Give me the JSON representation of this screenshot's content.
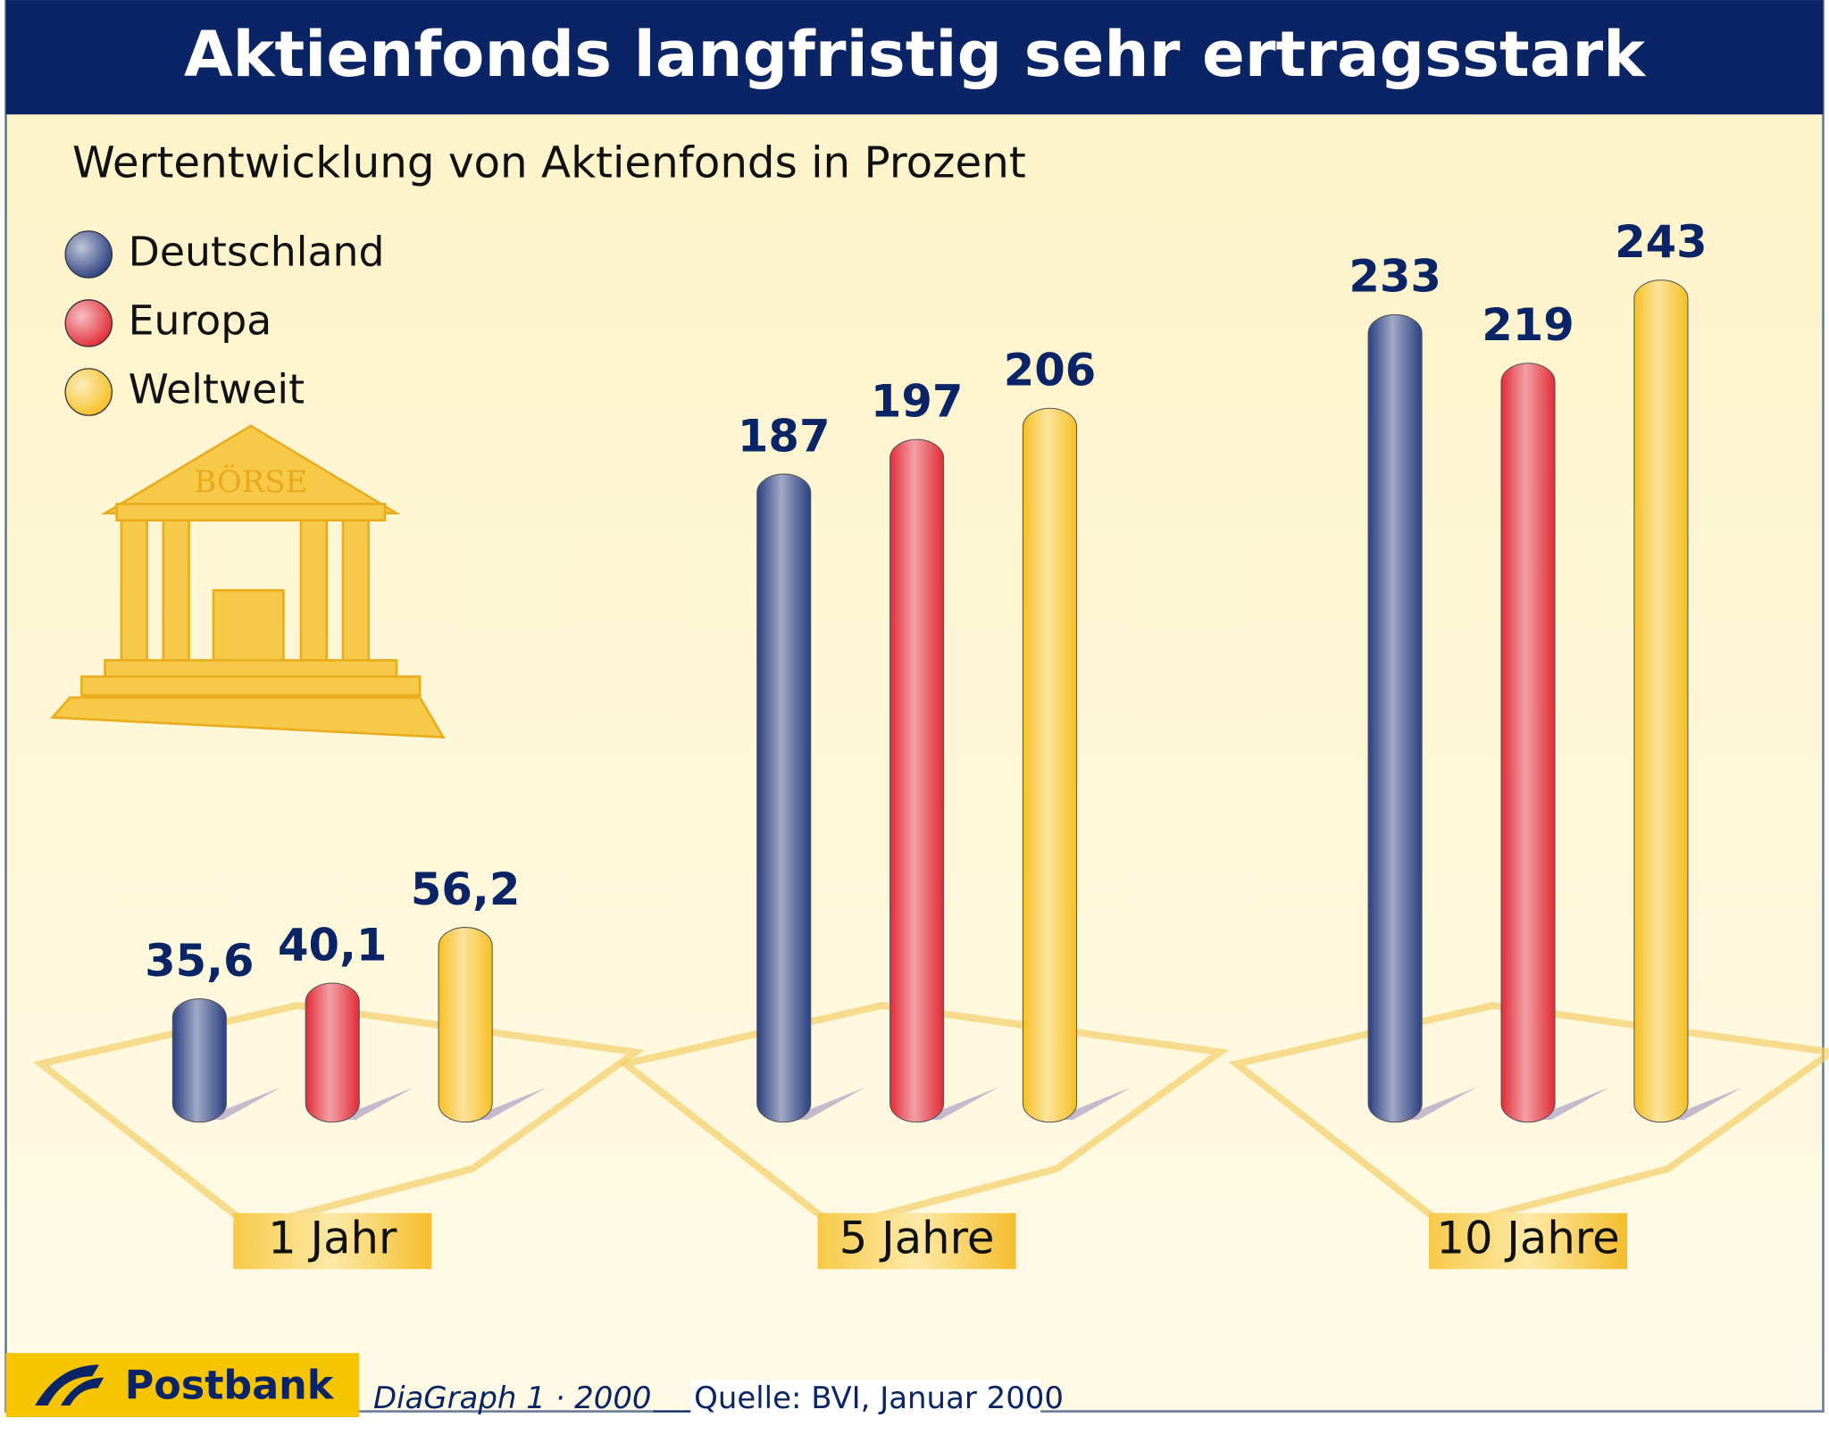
{
  "chart_data": {
    "type": "bar",
    "title": "Aktienfonds langfristig sehr ertragsstark",
    "subtitle": "Wertentwicklung von Aktienfonds in Prozent",
    "categories": [
      "1 Jahr",
      "5 Jahre",
      "10 Jahre"
    ],
    "series": [
      {
        "name": "Deutschland",
        "color": "#2b3f80",
        "values": [
          35.6,
          187,
          233
        ],
        "value_labels": [
          "35,6",
          "187",
          "233"
        ]
      },
      {
        "name": "Europa",
        "color": "#e22b36",
        "values": [
          40.1,
          197,
          219
        ],
        "value_labels": [
          "40,1",
          "197",
          "219"
        ]
      },
      {
        "name": "Weltweit",
        "color": "#f6c024",
        "values": [
          56.2,
          206,
          243
        ],
        "value_labels": [
          "56,2",
          "206",
          "243"
        ]
      }
    ],
    "building_label": "BÖRSE",
    "brand": "Postbank",
    "credit": "DiaGraph 1 · 2000",
    "source": "Quelle: BVI, Januar 2000"
  }
}
